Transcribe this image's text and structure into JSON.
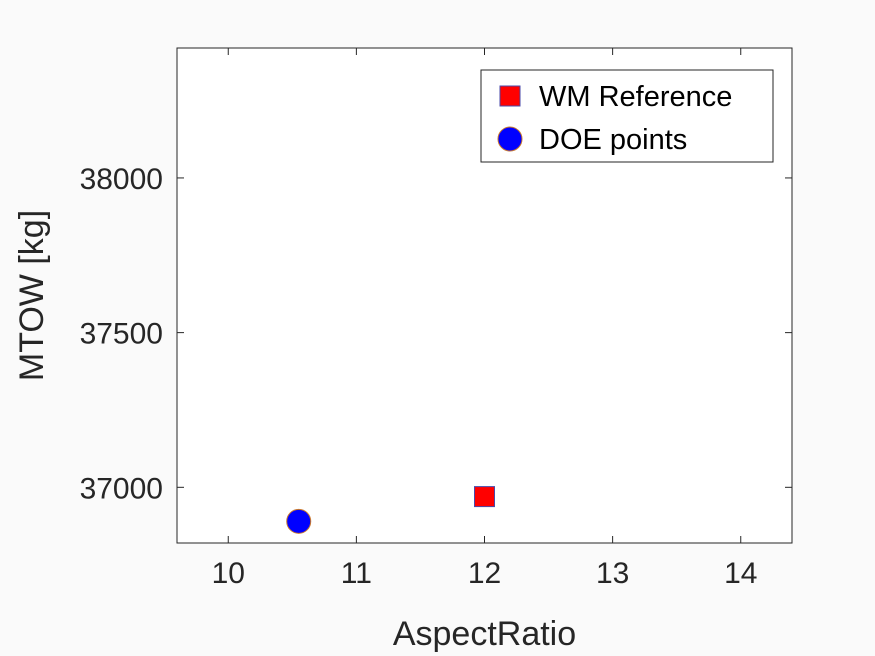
{
  "chart_data": {
    "type": "scatter",
    "title": "",
    "xlabel": "AspectRatio",
    "ylabel": "MTOW [kg]",
    "xlim": [
      9.6,
      14.4
    ],
    "ylim": [
      36820,
      38420
    ],
    "xticks": [
      10,
      11,
      12,
      13,
      14
    ],
    "xtick_labels": [
      "10",
      "11",
      "12",
      "13",
      "14"
    ],
    "yticks": [
      37000,
      37500,
      38000
    ],
    "ytick_labels": [
      "37000",
      "37500",
      "38000"
    ],
    "grid": false,
    "legend_position": "top-right",
    "series": [
      {
        "name": "WM Reference",
        "marker": "square",
        "color": "#ff0000",
        "edge_color": "#4a4aa8",
        "points": [
          {
            "x": 12.0,
            "y": 36970
          }
        ]
      },
      {
        "name": "DOE points",
        "marker": "circle",
        "color": "#0000ff",
        "edge_color": "#c87830",
        "points": [
          {
            "x": 10.55,
            "y": 36890
          }
        ]
      }
    ]
  },
  "colors": {
    "background": "#fafafa",
    "plot_area": "#ffffff",
    "axis": "#262626"
  }
}
